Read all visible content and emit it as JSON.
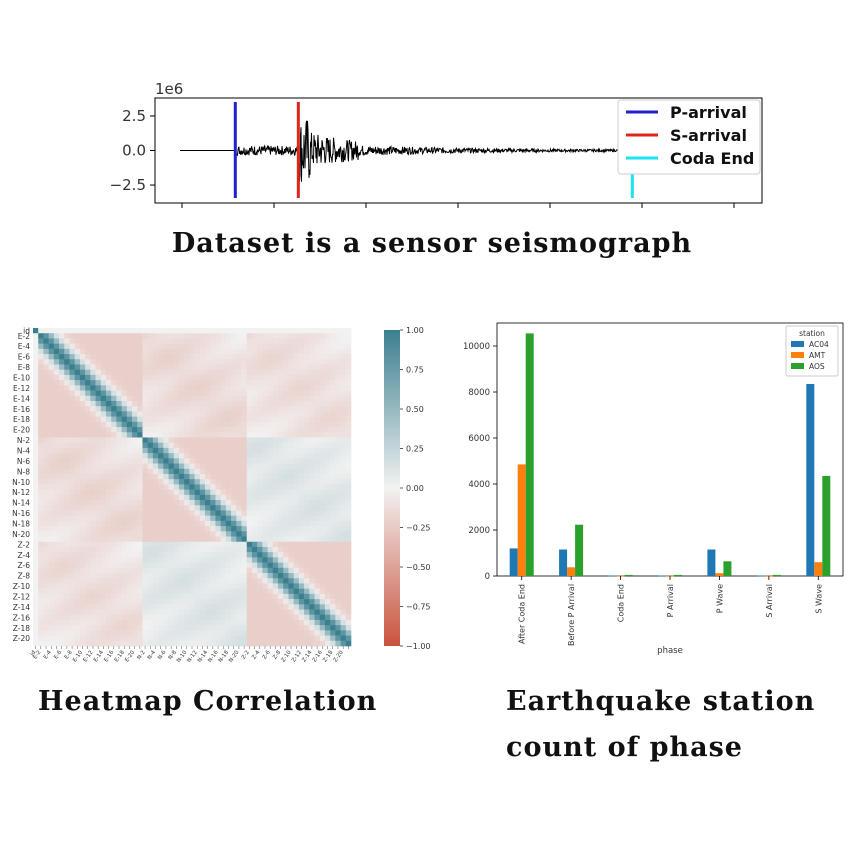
{
  "captions": {
    "seismograph": "Dataset is a sensor seismograph",
    "heatmap": "Heatmap Correlation",
    "bar_line1": "Earthquake station",
    "bar_line2": "count of phase"
  },
  "chart_data": [
    {
      "type": "line",
      "multiplier_label": "1e6",
      "yticks": [
        2.5,
        0.0,
        -2.5
      ],
      "ytick_labels": [
        "2.5",
        "0.0",
        "−2.5"
      ],
      "ylim": [
        -3.8,
        3.8
      ],
      "xlim": [
        0,
        1
      ],
      "x_tick_count": 7,
      "markers": [
        {
          "name": "P-arrival",
          "x": 0.1,
          "color": "#1f1fd6"
        },
        {
          "name": "S-arrival",
          "x": 0.214,
          "color": "#e0251e"
        },
        {
          "name": "Coda End",
          "x": 0.818,
          "color": "#19e6f2"
        }
      ],
      "legend_position": "top-right",
      "signal_color": "#000000"
    },
    {
      "type": "heatmap",
      "row_labels": [
        "id",
        "E-2",
        "E-4",
        "E-6",
        "E-8",
        "E-10",
        "E-12",
        "E-14",
        "E-16",
        "E-18",
        "E-20",
        "N-2",
        "N-4",
        "N-6",
        "N-8",
        "N-10",
        "N-12",
        "N-14",
        "N-16",
        "N-18",
        "N-20",
        "Z-2",
        "Z-4",
        "Z-6",
        "Z-8",
        "Z-10",
        "Z-12",
        "Z-14",
        "Z-16",
        "Z-18",
        "Z-20"
      ],
      "blocks": [
        "E",
        "N",
        "Z"
      ],
      "vmin": -1.0,
      "vmax": 1.0,
      "colorbar_ticks": [
        "1.00",
        "0.75",
        "0.50",
        "0.25",
        "0.00",
        "−0.25",
        "−0.50",
        "−0.75",
        "−1.00"
      ],
      "cmap_low": "#c9533d",
      "cmap_mid": "#f2f2f2",
      "cmap_high": "#3b7f8f"
    },
    {
      "type": "bar",
      "categories": [
        "After Coda End",
        "Before P Arrival",
        "Coda End",
        "P Arrival",
        "P Wave",
        "S Arrival",
        "S Wave"
      ],
      "series": [
        {
          "name": "AC04",
          "color": "#1f77b4",
          "values": [
            1200,
            1150,
            20,
            20,
            1150,
            20,
            8350
          ]
        },
        {
          "name": "AMT",
          "color": "#ff7f0e",
          "values": [
            4850,
            380,
            10,
            10,
            120,
            10,
            600
          ]
        },
        {
          "name": "AOS",
          "color": "#2ca02c",
          "values": [
            10550,
            2230,
            50,
            50,
            640,
            50,
            4350
          ]
        }
      ],
      "xlabel": "phase",
      "legend_title": "station",
      "legend_position": "top-right",
      "ylim": [
        0,
        11000
      ],
      "yticks": [
        0,
        2000,
        4000,
        6000,
        8000,
        10000
      ],
      "ytick_labels": [
        "0",
        "2000",
        "4000",
        "6000",
        "8000",
        "10000"
      ]
    }
  ]
}
